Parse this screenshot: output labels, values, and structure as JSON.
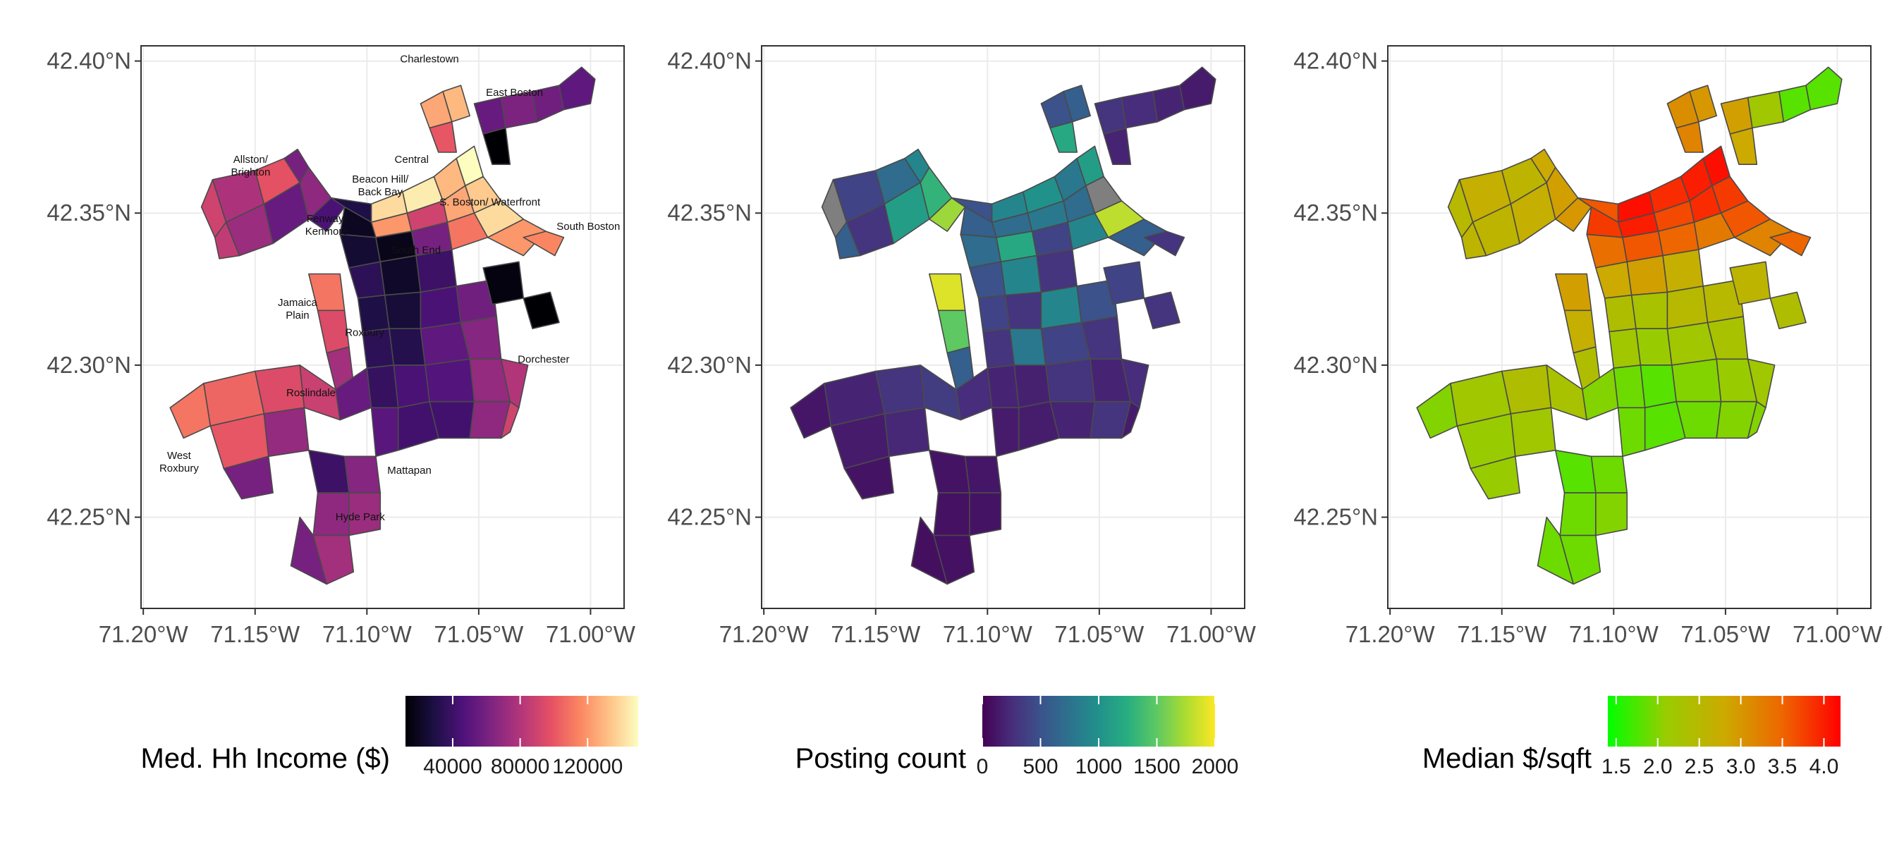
{
  "panels": [
    {
      "id": "income",
      "legend_title": "Med. Hh Income ($)",
      "legend_ticks": [
        "40000",
        "80000",
        "120000"
      ],
      "legend_tick_values": [
        40000,
        80000,
        120000
      ],
      "legend_range": [
        12000,
        150000
      ],
      "palette": "magma",
      "show_labels": true
    },
    {
      "id": "postings",
      "legend_title": "Posting count",
      "legend_ticks": [
        "0",
        "500",
        "1000",
        "1500",
        "2000"
      ],
      "legend_tick_values": [
        0,
        500,
        1000,
        1500,
        2000
      ],
      "legend_range": [
        0,
        2000
      ],
      "palette": "viridis",
      "show_labels": false
    },
    {
      "id": "price",
      "legend_title": "Median $/sqft",
      "legend_ticks": [
        "1.5",
        "2.0",
        "2.5",
        "3.0",
        "3.5",
        "4.0"
      ],
      "legend_tick_values": [
        1.5,
        2.0,
        2.5,
        3.0,
        3.5,
        4.0
      ],
      "legend_range": [
        1.4,
        4.2
      ],
      "palette": "green-red",
      "show_labels": false
    }
  ],
  "axes": {
    "y_ticks": [
      "42.25°N",
      "42.30°N",
      "42.35°N",
      "42.40°N"
    ],
    "y_values": [
      42.25,
      42.3,
      42.35,
      42.4
    ],
    "x_ticks": [
      "71.20°W",
      "71.15°W",
      "71.10°W",
      "71.05°W",
      "71.00°W"
    ],
    "x_values": [
      -71.2,
      -71.15,
      -71.1,
      -71.05,
      -71.0
    ],
    "lon_range": [
      -71.201,
      -70.985
    ],
    "lat_range": [
      42.22,
      42.405
    ]
  },
  "neighborhood_labels": [
    {
      "text": [
        "Charlestown"
      ],
      "lon": -71.072,
      "lat": 42.3995
    },
    {
      "text": [
        "East Boston"
      ],
      "lon": -71.034,
      "lat": 42.3885
    },
    {
      "text": [
        "Allston/",
        "Brighton"
      ],
      "lon": -71.152,
      "lat": 42.3665
    },
    {
      "text": [
        "Central"
      ],
      "lon": -71.08,
      "lat": 42.3665
    },
    {
      "text": [
        "Beacon Hill/",
        "Back Bay"
      ],
      "lon": -71.094,
      "lat": 42.36
    },
    {
      "text": [
        "S. Boston/ Waterfront"
      ],
      "lon": -71.045,
      "lat": 42.3525
    },
    {
      "text": [
        "South Boston"
      ],
      "lon": -71.001,
      "lat": 42.3445
    },
    {
      "text": [
        "Fenway/",
        "Kenmore"
      ],
      "lon": -71.118,
      "lat": 42.347
    },
    {
      "text": [
        "South End"
      ],
      "lon": -71.078,
      "lat": 42.3367
    },
    {
      "text": [
        "Jamaica",
        "Plain"
      ],
      "lon": -71.131,
      "lat": 42.3195
    },
    {
      "text": [
        "Roxbury"
      ],
      "lon": -71.101,
      "lat": 42.3096
    },
    {
      "text": [
        "Dorchester"
      ],
      "lon": -71.021,
      "lat": 42.3008
    },
    {
      "text": [
        "Roslindale"
      ],
      "lon": -71.125,
      "lat": 42.2898
    },
    {
      "text": [
        "West",
        "Roxbury"
      ],
      "lon": -71.184,
      "lat": 42.2692
    },
    {
      "text": [
        "Mattapan"
      ],
      "lon": -71.081,
      "lat": 42.2643
    },
    {
      "text": [
        "Hyde Park"
      ],
      "lon": -71.103,
      "lat": 42.249
    }
  ],
  "colors": {
    "missing": "#7f7f7f",
    "grid": "#ebebeb",
    "panel_border": "#333333",
    "tract_border": "#4a4a4a"
  }
}
